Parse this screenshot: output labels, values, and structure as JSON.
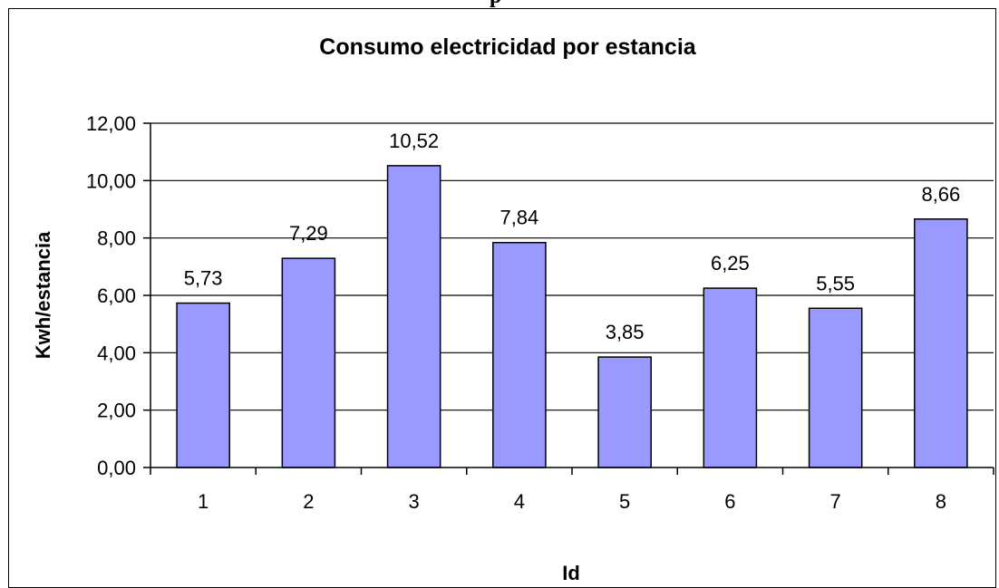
{
  "page": {
    "top_cut_text": "p"
  },
  "chart_data": {
    "type": "bar",
    "title": "Consumo electricidad por estancia",
    "xlabel": "Id",
    "ylabel": "Kwh/estancia",
    "categories": [
      "1",
      "2",
      "3",
      "4",
      "5",
      "6",
      "7",
      "8"
    ],
    "values": [
      5.73,
      7.29,
      10.52,
      7.84,
      3.85,
      6.25,
      5.55,
      8.66
    ],
    "data_labels": [
      "5,73",
      "7,29",
      "10,52",
      "7,84",
      "3,85",
      "6,25",
      "5,55",
      "8,66"
    ],
    "yticks": [
      "0,00",
      "2,00",
      "4,00",
      "6,00",
      "8,00",
      "10,00",
      "12,00"
    ],
    "ylim": [
      0,
      12
    ],
    "grid": true,
    "legend": "none",
    "bar_color": "#9999ff",
    "bar_edge_color": "#000000",
    "grid_color": "#000000"
  }
}
